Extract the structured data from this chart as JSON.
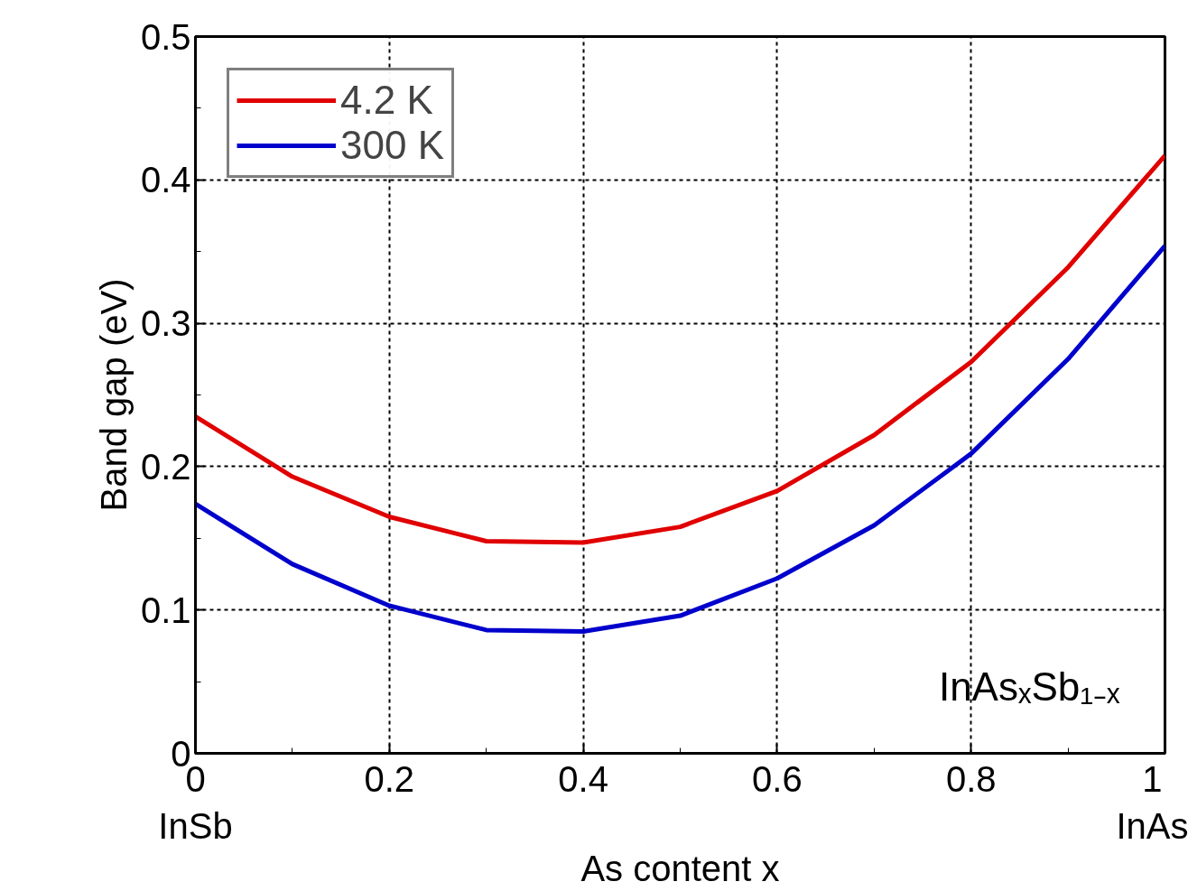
{
  "chart_data": {
    "type": "line",
    "xlabel": "As content x",
    "ylabel": "Band gap (eV)",
    "x": [
      0,
      0.1,
      0.2,
      0.3,
      0.4,
      0.5,
      0.6,
      0.7,
      0.8,
      0.9,
      1
    ],
    "series": [
      {
        "name": "4.2 K",
        "color": "#e00000",
        "values": [
          0.235,
          0.193,
          0.165,
          0.148,
          0.147,
          0.158,
          0.183,
          0.222,
          0.273,
          0.339,
          0.417
        ]
      },
      {
        "name": "300 K",
        "color": "#0000cc",
        "values": [
          0.174,
          0.132,
          0.103,
          0.086,
          0.085,
          0.096,
          0.122,
          0.159,
          0.209,
          0.275,
          0.354
        ]
      }
    ],
    "xlim": [
      0,
      1
    ],
    "xticks": [
      {
        "value": 0,
        "label": "0\nInSb"
      },
      0.2,
      0.4,
      0.6,
      0.8,
      {
        "value": 1,
        "label": "1\nInAs"
      }
    ],
    "ylim": [
      0,
      0.5
    ],
    "yticks": [
      0,
      0.1,
      0.2,
      0.3,
      0.4,
      0.5
    ],
    "grid": true,
    "legend": "top left",
    "marker": "none",
    "line_style": "solid",
    "annotations": [
      "InAsₓSb₁₋ₓ"
    ]
  }
}
